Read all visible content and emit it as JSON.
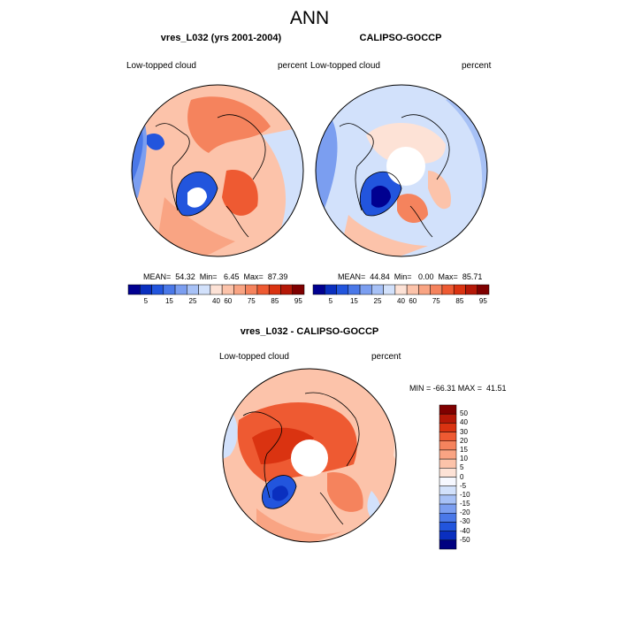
{
  "page_title": "ANN",
  "palette": [
    "#000090",
    "#0a2fbf",
    "#2255dd",
    "#4a78e8",
    "#7b9ef0",
    "#a7c1f6",
    "#d2e1fb",
    "#fde2d6",
    "#fcc3aa",
    "#f9a483",
    "#f5835d",
    "#ee5a32",
    "#da3311",
    "#b51807",
    "#7f0000"
  ],
  "diff_palette": [
    "#000080",
    "#0a2fbf",
    "#2255dd",
    "#4a78e8",
    "#7b9ef0",
    "#a7c1f6",
    "#d2e1fb",
    "#f6f8ff",
    "#fde2d6",
    "#fcc3aa",
    "#f9a483",
    "#f5835d",
    "#ee5a32",
    "#da3311",
    "#b51807",
    "#7f0000"
  ],
  "panels": [
    {
      "title": "vres_L032 (yrs 2001-2004)",
      "left_label": "Low-topped cloud",
      "right_label": "percent",
      "stats": "MEAN=  54.32  Min=   6.45  Max=  87.39",
      "colorbar_labels": [
        "5",
        "15",
        "25",
        "40",
        "60",
        "75",
        "85",
        "95"
      ]
    },
    {
      "title": "CALIPSO-GOCCP",
      "left_label": "Low-topped cloud",
      "right_label": "percent",
      "stats": "MEAN=  44.84  Min=   0.00  Max=  85.71",
      "colorbar_labels": [
        "5",
        "15",
        "25",
        "40",
        "60",
        "75",
        "85",
        "95"
      ]
    }
  ],
  "diff_panel": {
    "title": "vres_L032 - CALIPSO-GOCCP",
    "left_label": "Low-topped cloud",
    "right_label": "percent",
    "stats": "MIN = -66.31 MAX =  41.51",
    "colorbar_labels": [
      "50",
      "40",
      "30",
      "20",
      "15",
      "10",
      "5",
      "0",
      "-5",
      "-10",
      "-15",
      "-20",
      "-30",
      "-40",
      "-50"
    ]
  }
}
